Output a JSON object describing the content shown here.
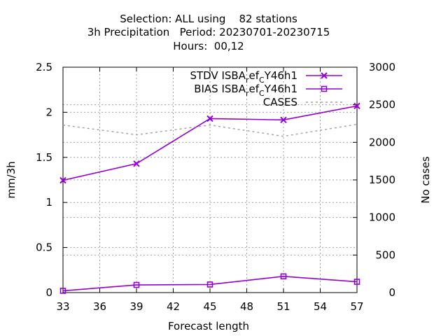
{
  "chart_data": {
    "type": "line",
    "title": [
      "Selection: ALL using    82 stations",
      "3h Precipitation   Period: 20230701-20230715",
      "Hours:  00,12"
    ],
    "xlabel": "Forecast length",
    "ylabel": "mm/3h",
    "y2label": "No cases",
    "x": [
      33,
      39,
      45,
      51,
      57
    ],
    "xticks": [
      "33",
      "36",
      "39",
      "42",
      "45",
      "48",
      "51",
      "54",
      "57"
    ],
    "xlim": [
      33,
      57
    ],
    "ylim": [
      0,
      2.5
    ],
    "yticks": [
      "0",
      "0.5",
      "1",
      "1.5",
      "2",
      "2.5"
    ],
    "y2lim": [
      0,
      3000
    ],
    "y2ticks": [
      "0",
      "500",
      "1000",
      "1500",
      "2000",
      "2500",
      "3000"
    ],
    "grid": true,
    "legend_position": "top-right",
    "series": [
      {
        "name": "STDV ISBA",
        "name_sub1": "r",
        "name_mid": "ef",
        "name_sub2": "C",
        "name_end": "Y46h1",
        "axis": "y",
        "marker": "x",
        "color": "#9400d3",
        "values": [
          1.245,
          1.43,
          1.93,
          1.915,
          2.07
        ]
      },
      {
        "name": "BIAS ISBA",
        "name_sub1": "r",
        "name_mid": "ef",
        "name_sub2": "C",
        "name_end": "Y46h1",
        "axis": "y",
        "marker": "square",
        "color": "#9400d3",
        "values": [
          0.02,
          0.085,
          0.09,
          0.18,
          0.12
        ]
      },
      {
        "name": "CASES",
        "axis": "y2",
        "marker": "none",
        "style": "dashed",
        "color": "#a0a0a0",
        "values": [
          2230,
          2100,
          2230,
          2080,
          2240
        ]
      }
    ]
  }
}
